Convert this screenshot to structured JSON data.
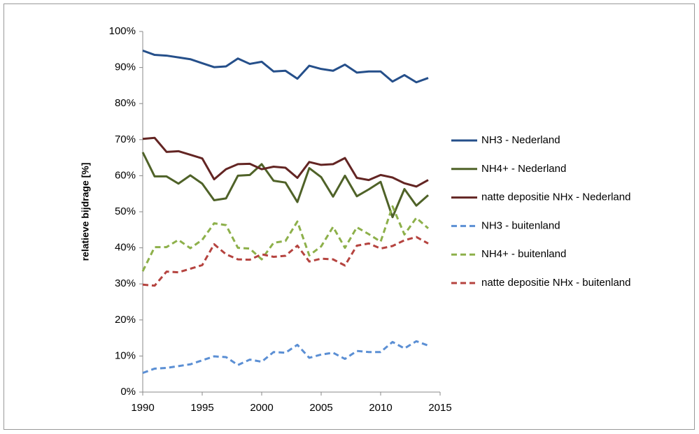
{
  "chart_data": {
    "type": "line",
    "y_label": "relatieve bijdrage [%]",
    "x": [
      1990,
      1991,
      1992,
      1993,
      1994,
      1995,
      1996,
      1997,
      1998,
      1999,
      2000,
      2001,
      2002,
      2003,
      2004,
      2005,
      2006,
      2007,
      2008,
      2009,
      2010,
      2011,
      2012,
      2013,
      2014
    ],
    "xlim": [
      1990,
      2015
    ],
    "xticks": [
      1990,
      1995,
      2000,
      2005,
      2010,
      2015
    ],
    "ylim": [
      0,
      100
    ],
    "yticks": [
      {
        "value": 0,
        "label": "0%"
      },
      {
        "value": 10,
        "label": "10%"
      },
      {
        "value": 20,
        "label": "20%"
      },
      {
        "value": 30,
        "label": "30%"
      },
      {
        "value": 40,
        "label": "40%"
      },
      {
        "value": 50,
        "label": "50%"
      },
      {
        "value": 60,
        "label": "60%"
      },
      {
        "value": 70,
        "label": "70%"
      },
      {
        "value": 80,
        "label": "80%"
      },
      {
        "value": 90,
        "label": "90%"
      },
      {
        "value": 100,
        "label": "100%"
      }
    ],
    "grid": false,
    "legend": "right",
    "series": [
      {
        "name": "NH3 - Nederland",
        "color": "#254f8a",
        "dashed": false,
        "values": [
          94.7,
          93.5,
          93.3,
          92.8,
          92.3,
          91.2,
          90.1,
          90.3,
          92.5,
          91.0,
          91.6,
          88.9,
          89.1,
          86.9,
          90.5,
          89.6,
          89.1,
          90.8,
          88.6,
          88.9,
          88.9,
          86.1,
          87.9,
          85.9,
          87.1
        ]
      },
      {
        "name": "NH4+ - Nederland",
        "color": "#4f6228",
        "dashed": false,
        "values": [
          66.5,
          59.8,
          59.8,
          57.8,
          60.1,
          57.8,
          53.2,
          53.7,
          60.0,
          60.2,
          63.2,
          58.6,
          58.1,
          52.7,
          62.1,
          59.6,
          54.2,
          60.0,
          54.3,
          56.2,
          58.3,
          48.5,
          56.3,
          51.7,
          54.6
        ]
      },
      {
        "name": "natte depositie NHx - Nederland",
        "color": "#632523",
        "dashed": false,
        "values": [
          70.2,
          70.5,
          66.6,
          66.8,
          65.8,
          64.8,
          59.0,
          61.8,
          63.2,
          63.3,
          61.8,
          62.5,
          62.2,
          59.4,
          63.8,
          63.0,
          63.2,
          64.9,
          59.4,
          58.8,
          60.2,
          59.5,
          57.9,
          57.0,
          58.8
        ]
      },
      {
        "name": "NH3 - buitenland",
        "color": "#5b8fd4",
        "dashed": true,
        "values": [
          5.3,
          6.5,
          6.7,
          7.2,
          7.7,
          8.8,
          9.9,
          9.7,
          7.5,
          9.0,
          8.4,
          11.1,
          10.9,
          13.1,
          9.5,
          10.4,
          10.9,
          9.2,
          11.4,
          11.1,
          11.1,
          13.9,
          12.1,
          14.1,
          12.9
        ]
      },
      {
        "name": "NH4+ - buitenland",
        "color": "#8db04a",
        "dashed": true,
        "values": [
          33.5,
          40.2,
          40.2,
          42.2,
          39.9,
          42.2,
          46.8,
          46.3,
          40.0,
          39.8,
          36.8,
          41.4,
          41.9,
          47.3,
          37.9,
          40.4,
          45.8,
          40.0,
          45.7,
          43.8,
          41.7,
          51.5,
          43.7,
          48.3,
          45.4
        ]
      },
      {
        "name": "natte depositie NHx - buitenland",
        "color": "#b5433f",
        "dashed": true,
        "values": [
          29.8,
          29.5,
          33.4,
          33.2,
          34.2,
          35.2,
          41.0,
          38.2,
          36.8,
          36.7,
          38.2,
          37.5,
          37.8,
          40.6,
          36.2,
          37.0,
          36.8,
          35.1,
          40.6,
          41.2,
          39.8,
          40.5,
          42.1,
          43.0,
          41.2
        ]
      }
    ]
  }
}
